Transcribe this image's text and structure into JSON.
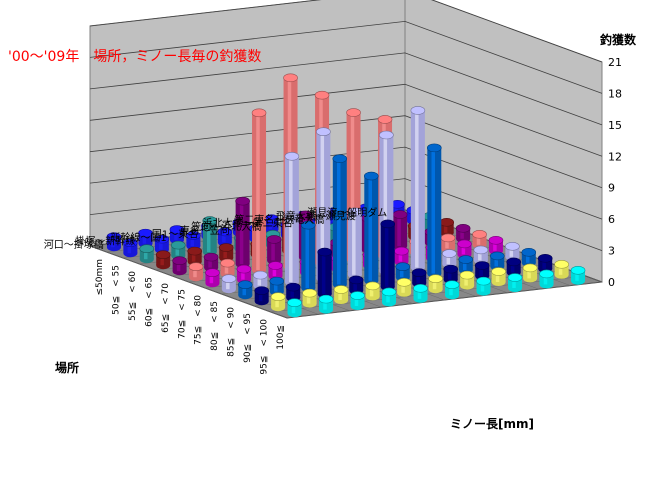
{
  "chart_data": {
    "type": "bar3d",
    "title": "'00～'09年　場所，ミノー長毎の釣獲数",
    "zlabel": "釣獲数",
    "ylabel": "場所",
    "xlabel": "ミノー長[mm]",
    "zlim": [
      0,
      21
    ],
    "zticks": [
      0,
      3,
      6,
      9,
      12,
      15,
      18,
      21
    ],
    "grid": true,
    "legend": "none",
    "x_categories": [
      "≤50mm",
      "50≦　< 55",
      "55≦　< 60",
      "60≦　< 65",
      "65≦　< 70",
      "70≦　< 75",
      "75≦　< 80",
      "80≦　< 85",
      "85≦　< 90",
      "90≦　< 95",
      "95≦　< 100",
      "100≦"
    ],
    "y_categories": [
      "河口～掛塚橋",
      "掛塚～新幹線",
      "新幹線～国1",
      "国1～東名",
      "東名～笠向",
      "笠向～浜北大橋",
      "浜北大橋～第二東名",
      "第二東名～飛竜大橋",
      "飛竜大橋～瀬見渡",
      "瀬見渡～船明ダム"
    ],
    "colors": [
      "#1a1aff",
      "#1a1aff",
      "#2a9a9a",
      "#8a1a1a",
      "#800080",
      "#ff8080",
      "#cc00cc",
      "#c0c0ff",
      "#0066cc",
      "#000080",
      "#ffff66",
      "#00ffff"
    ],
    "values": [
      [
        1,
        1,
        1,
        1,
        1,
        1,
        1,
        1,
        1,
        1,
        1,
        1
      ],
      [
        1,
        1,
        1,
        1,
        1,
        1,
        1,
        1,
        1,
        1,
        1,
        1
      ],
      [
        1,
        1,
        3,
        1,
        6,
        15,
        1,
        12,
        6,
        4,
        1,
        1
      ],
      [
        1,
        1,
        1,
        1,
        2,
        18,
        1,
        14,
        12,
        1,
        1,
        1
      ],
      [
        1,
        1,
        1,
        3,
        4,
        16,
        1,
        6,
        10,
        6,
        1,
        1
      ],
      [
        1,
        1,
        1,
        1,
        1,
        14,
        1,
        13,
        1,
        1,
        1,
        1
      ],
      [
        1,
        1,
        1,
        1,
        3,
        13,
        1,
        15,
        12,
        1,
        1,
        1
      ],
      [
        1,
        1,
        1,
        1,
        3,
        1,
        1,
        1,
        1,
        1,
        1,
        1
      ],
      [
        1,
        1,
        1,
        1,
        1,
        1,
        1,
        1,
        1,
        1,
        1,
        1
      ],
      [
        1,
        1,
        1,
        1,
        1,
        1,
        1,
        1,
        1,
        1,
        1,
        1
      ]
    ]
  }
}
